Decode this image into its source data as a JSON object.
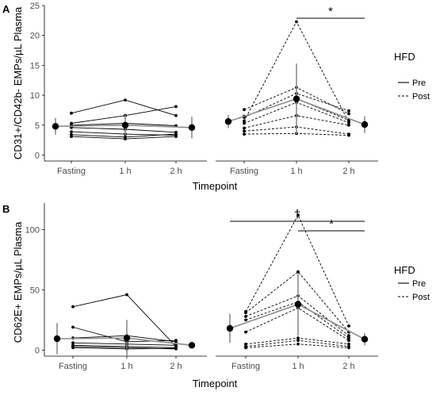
{
  "legend": {
    "title": "HFD",
    "items": [
      {
        "label": "Pre",
        "dash": "solid"
      },
      {
        "label": "Post",
        "dash": "dashed"
      }
    ]
  },
  "chart_data": [
    {
      "panel": "A",
      "type": "line",
      "ylabel": "CD31+/CD42b- EMPs/µL Plasma",
      "xlabel": "Timepoint",
      "categories": [
        "Fasting",
        "1 h",
        "2 h"
      ],
      "ylim": [
        -1,
        25
      ],
      "yticks": [
        0,
        5,
        10,
        15,
        20,
        25
      ],
      "grid": false,
      "facets": [
        {
          "name": "Pre",
          "dash": "solid",
          "individuals": [
            [
              7.0,
              9.2,
              6.6
            ],
            [
              5.3,
              6.6,
              8.1
            ],
            [
              5.0,
              5.3,
              4.9
            ],
            [
              4.6,
              4.3,
              3.8
            ],
            [
              3.9,
              3.5,
              3.3
            ],
            [
              3.4,
              3.0,
              3.5
            ],
            [
              3.1,
              2.7,
              3.1
            ]
          ],
          "mean": [
            4.8,
            5.0,
            4.6
          ],
          "err": [
            1.4,
            1.7,
            1.8
          ]
        },
        {
          "name": "Post",
          "dash": "dashed",
          "individuals": [
            [
              5.7,
              22.3,
              5.5
            ],
            [
              7.6,
              11.3,
              6.9
            ],
            [
              6.3,
              10.3,
              7.4
            ],
            [
              6.5,
              9.4,
              5.8
            ],
            [
              5.3,
              8.8,
              5.4
            ],
            [
              4.5,
              6.6,
              5.0
            ],
            [
              4.0,
              4.7,
              3.5
            ],
            [
              3.5,
              3.6,
              3.3
            ]
          ],
          "mean": [
            5.6,
            9.4,
            5.1
          ],
          "err": [
            1.1,
            5.9,
            1.4
          ]
        }
      ],
      "annotations": [
        {
          "symbol": "*",
          "from": "1 h",
          "to": "2 h",
          "facet": "Post"
        }
      ]
    },
    {
      "panel": "B",
      "type": "line",
      "ylabel": "CD62E+ EMPs/µL Plasma",
      "xlabel": "Timepoint",
      "categories": [
        "Fasting",
        "1 h",
        "2 h"
      ],
      "ylim": [
        -5,
        122
      ],
      "yticks": [
        0,
        50,
        100
      ],
      "grid": false,
      "facets": [
        {
          "name": "Pre",
          "dash": "solid",
          "individuals": [
            [
              36.0,
              46.0,
              3.0
            ],
            [
              19.0,
              7.0,
              8.0
            ],
            [
              10.0,
              12.0,
              7.0
            ],
            [
              6.0,
              5.0,
              4.0
            ],
            [
              4.0,
              3.0,
              2.0
            ],
            [
              3.0,
              2.0,
              1.0
            ],
            [
              2.0,
              1.0,
              1.5
            ]
          ],
          "mean": [
            9.5,
            10.0,
            4.0
          ],
          "err": [
            13.0,
            15.0,
            2.5
          ]
        },
        {
          "name": "Post",
          "dash": "dashed",
          "individuals": [
            [
              32.0,
              112.0,
              20.0
            ],
            [
              31.0,
              65.0,
              15.0
            ],
            [
              28.0,
              45.0,
              12.0
            ],
            [
              25.0,
              40.0,
              10.0
            ],
            [
              15.0,
              35.0,
              8.0
            ],
            [
              5.0,
              10.0,
              5.0
            ],
            [
              3.0,
              8.0,
              3.0
            ],
            [
              2.0,
              5.0,
              2.0
            ]
          ],
          "mean": [
            18.0,
            38.0,
            9.0
          ],
          "err": [
            12.0,
            26.0,
            5.0
          ]
        }
      ],
      "annotations": [
        {
          "symbol": "†",
          "from": "Fasting",
          "to": "2 h",
          "facet": "Post"
        },
        {
          "symbol": "*",
          "from": "1 h",
          "to": "2 h",
          "facet": "Post"
        }
      ]
    }
  ]
}
